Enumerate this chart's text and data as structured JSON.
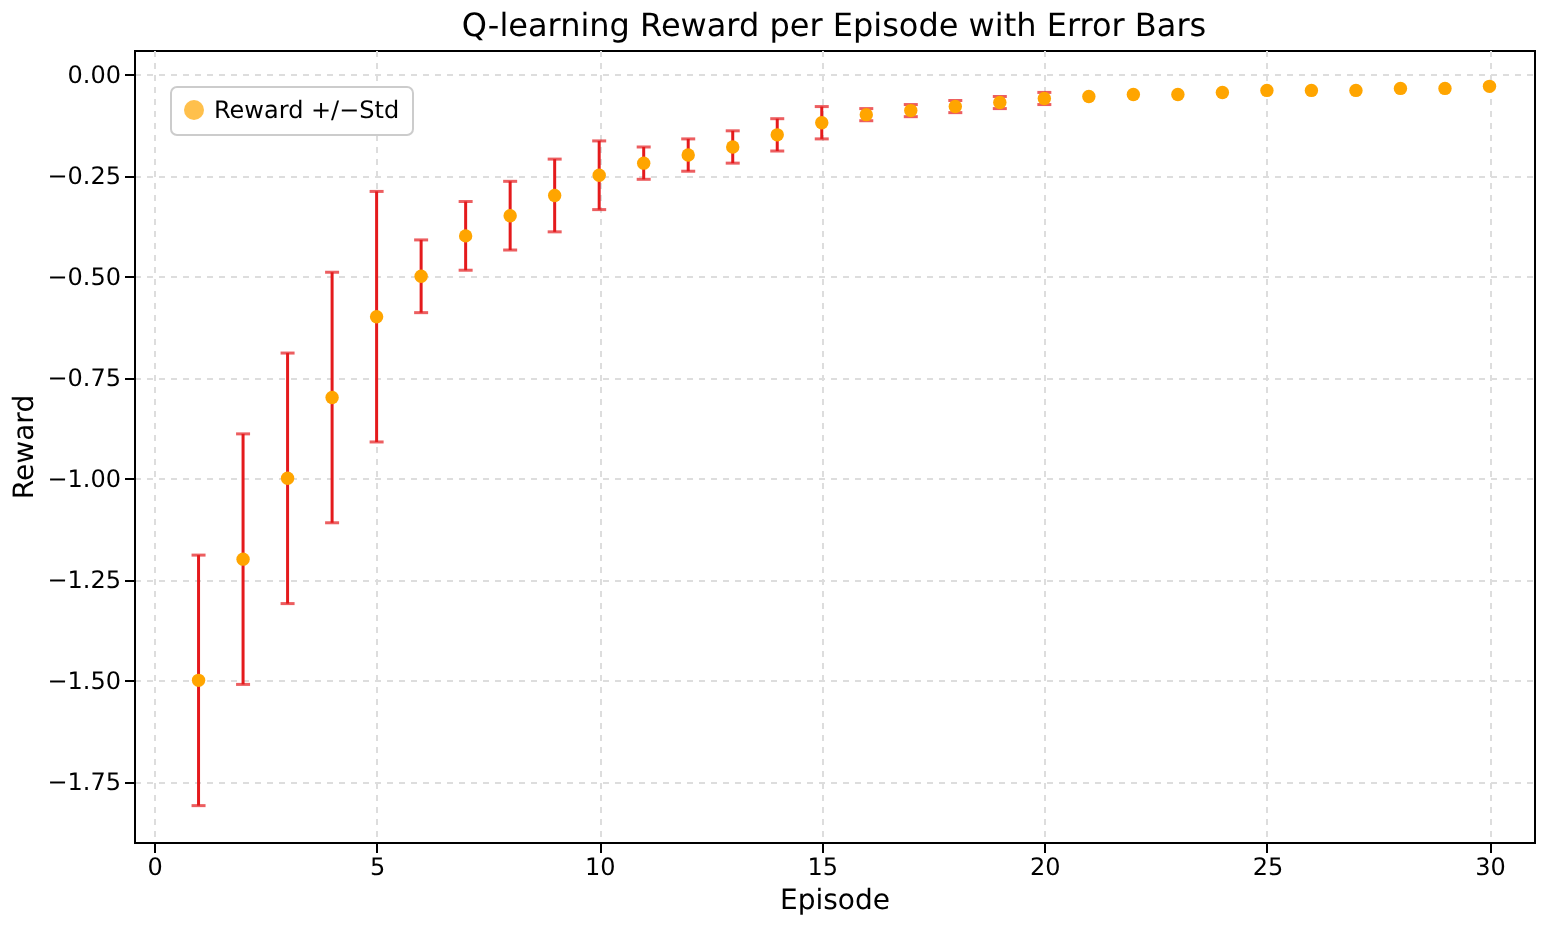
{
  "chart_data": {
    "type": "scatter",
    "title": "Q-learning Reward per Episode with Error Bars",
    "xlabel": "Episode",
    "ylabel": "Reward",
    "x": [
      1,
      2,
      3,
      4,
      5,
      6,
      7,
      8,
      9,
      10,
      11,
      12,
      13,
      14,
      15,
      16,
      17,
      18,
      19,
      20,
      21,
      22,
      23,
      24,
      25,
      26,
      27,
      28,
      29,
      30
    ],
    "series": [
      {
        "name": "Reward +/−Std",
        "color": "#ffa500",
        "values": [
          -1.5,
          -1.2,
          -1.0,
          -0.8,
          -0.6,
          -0.5,
          -0.4,
          -0.35,
          -0.3,
          -0.25,
          -0.22,
          -0.2,
          -0.18,
          -0.15,
          -0.12,
          -0.1,
          -0.09,
          -0.08,
          -0.07,
          -0.06,
          -0.055,
          -0.05,
          -0.05,
          -0.045,
          -0.04,
          -0.04,
          -0.04,
          -0.035,
          -0.035,
          -0.03
        ],
        "errors": [
          0.31,
          0.31,
          0.31,
          0.31,
          0.31,
          0.09,
          0.085,
          0.085,
          0.09,
          0.085,
          0.04,
          0.04,
          0.04,
          0.04,
          0.04,
          0.015,
          0.015,
          0.015,
          0.015,
          0.015,
          null,
          null,
          null,
          null,
          null,
          null,
          null,
          null,
          null,
          null
        ]
      }
    ],
    "xlim": [
      -0.45,
      31
    ],
    "xticks": [
      0,
      5,
      10,
      15,
      20,
      25,
      30
    ],
    "ylim": [
      -1.9,
      0.06
    ],
    "yticks": [
      {
        "value": -1.75,
        "label": "−1.75"
      },
      {
        "value": -1.5,
        "label": "−1.50"
      },
      {
        "value": -1.25,
        "label": "−1.25"
      },
      {
        "value": -1.0,
        "label": "−1.00"
      },
      {
        "value": -0.75,
        "label": "−0.75"
      },
      {
        "value": -0.5,
        "label": "−0.50"
      },
      {
        "value": -0.25,
        "label": "−0.25"
      },
      {
        "value": 0.0,
        "label": "0.00"
      }
    ],
    "grid": true,
    "legend": "top left",
    "marker": "circle"
  }
}
